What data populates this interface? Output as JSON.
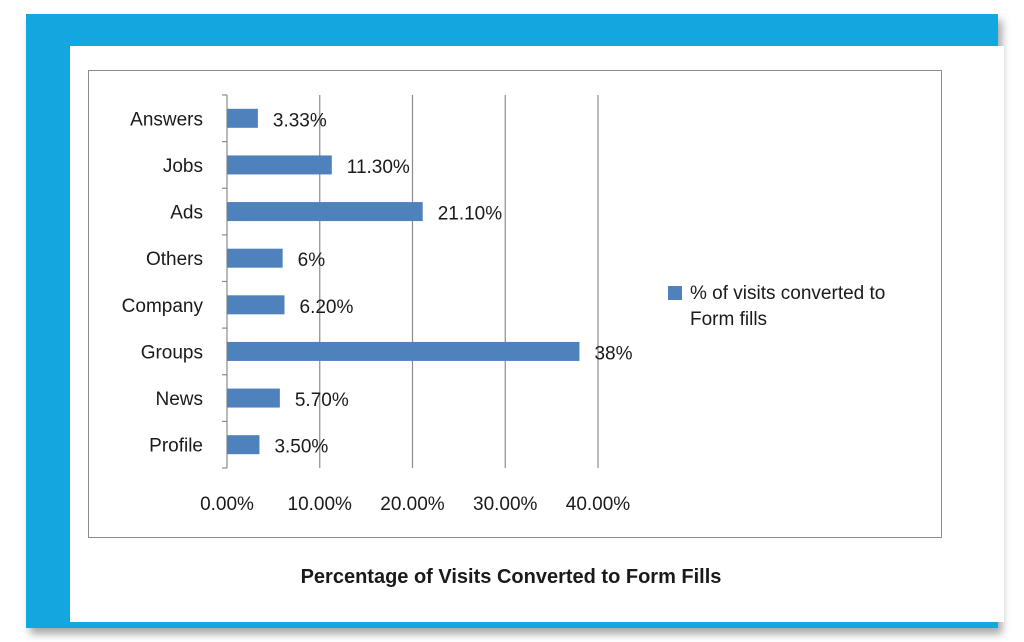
{
  "chart_data": {
    "type": "bar",
    "orientation": "horizontal",
    "title": "Percentage of Visits Converted to Form Fills",
    "categories": [
      "Answers",
      "Jobs",
      "Ads",
      "Others",
      "Company",
      "Groups",
      "News",
      "Profile"
    ],
    "series": [
      {
        "name": "% of visits converted to Form fills",
        "values": [
          3.33,
          11.3,
          21.1,
          6,
          6.2,
          38,
          5.7,
          3.5
        ],
        "labels": [
          "3.33%",
          "11.30%",
          "21.10%",
          "6%",
          "6.20%",
          "38%",
          "5.70%",
          "3.50%"
        ]
      }
    ],
    "xlim": [
      0,
      40
    ],
    "xticks": [
      "0.00%",
      "10.00%",
      "20.00%",
      "30.00%",
      "40.00%"
    ],
    "xlabel": "",
    "ylabel": "",
    "grid": "vertical",
    "legend": {
      "position": "right",
      "line1": "% of visits converted to",
      "line2": "Form fills"
    },
    "bar_color": "#4f81bd"
  },
  "frame_color": "#14a6df"
}
